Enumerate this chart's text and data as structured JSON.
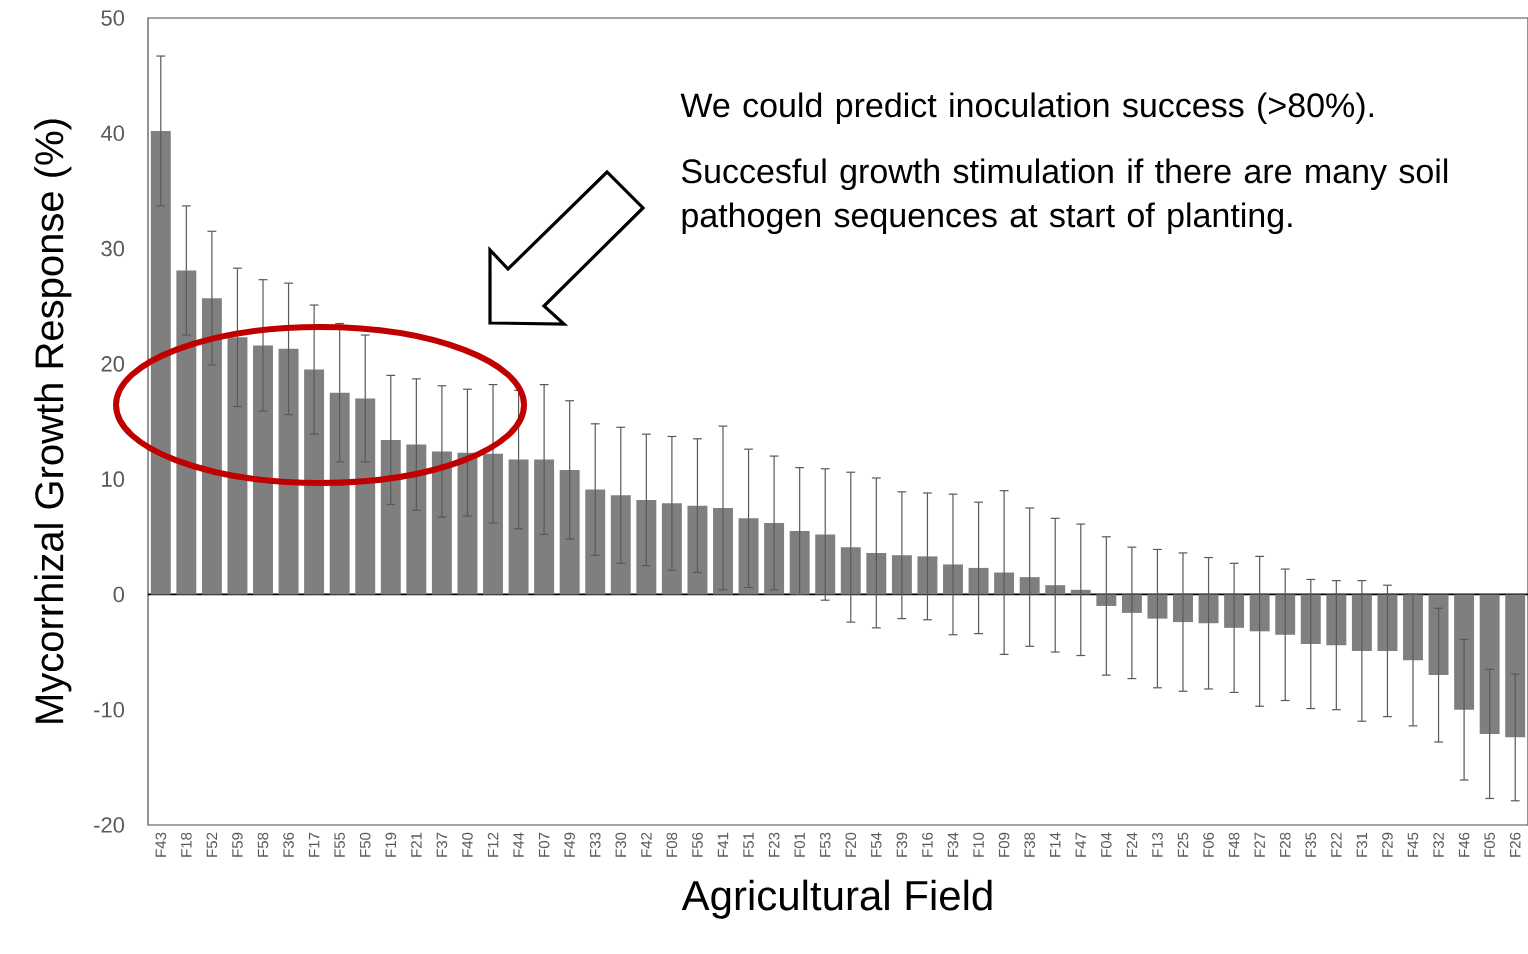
{
  "chart_data": {
    "type": "bar",
    "xlabel": "Agricultural Field",
    "ylabel": "Mycorrhizal Growth Response (%)",
    "categories": [
      "F43",
      "F18",
      "F52",
      "F59",
      "F58",
      "F36",
      "F17",
      "F55",
      "F50",
      "F19",
      "F21",
      "F37",
      "F40",
      "F12",
      "F44",
      "F07",
      "F49",
      "F33",
      "F30",
      "F42",
      "F08",
      "F56",
      "F41",
      "F51",
      "F23",
      "F01",
      "F53",
      "F20",
      "F54",
      "F39",
      "F16",
      "F34",
      "F10",
      "F09",
      "F38",
      "F14",
      "F47",
      "F04",
      "F24",
      "F13",
      "F25",
      "F06",
      "F48",
      "F27",
      "F28",
      "F35",
      "F22",
      "F31",
      "F29",
      "F45",
      "F32",
      "F46",
      "F05",
      "F26"
    ],
    "values": [
      40.2,
      28.1,
      25.7,
      22.3,
      21.6,
      21.3,
      19.5,
      17.5,
      17.0,
      13.4,
      13.0,
      12.4,
      12.3,
      12.2,
      11.7,
      11.7,
      10.8,
      9.1,
      8.6,
      8.2,
      7.9,
      7.7,
      7.5,
      6.6,
      6.2,
      5.5,
      5.2,
      4.1,
      3.6,
      3.4,
      3.3,
      2.6,
      2.3,
      1.9,
      1.5,
      0.8,
      0.4,
      -1.0,
      -1.6,
      -2.1,
      -2.4,
      -2.5,
      -2.9,
      -3.2,
      -3.5,
      -4.3,
      -4.4,
      -4.9,
      -4.9,
      -5.7,
      -7.0,
      -10.0,
      -12.1,
      -12.4
    ],
    "errors": [
      6.5,
      5.6,
      5.8,
      6.0,
      5.7,
      5.7,
      5.6,
      6.0,
      5.5,
      5.6,
      5.7,
      5.7,
      5.5,
      6.0,
      6.0,
      6.5,
      6.0,
      5.7,
      5.9,
      5.7,
      5.8,
      5.8,
      7.1,
      6.0,
      5.8,
      5.5,
      5.7,
      6.5,
      6.5,
      5.5,
      5.5,
      6.1,
      5.7,
      7.1,
      6.0,
      5.8,
      5.7,
      6.0,
      5.7,
      6.0,
      6.0,
      5.7,
      5.6,
      6.5,
      5.7,
      5.6,
      5.6,
      6.1,
      5.7,
      5.7,
      5.8,
      6.1,
      5.6,
      5.5
    ],
    "color": "#7f7f7f",
    "ylim": [
      -20,
      50
    ],
    "yticks": [
      -20,
      -10,
      0,
      10,
      20,
      30,
      40,
      50
    ],
    "annotations": [
      "We could predict inoculation success (>80%).",
      "Succesful growth stimulation if there are many soil pathogen sequences at start of planting."
    ]
  }
}
